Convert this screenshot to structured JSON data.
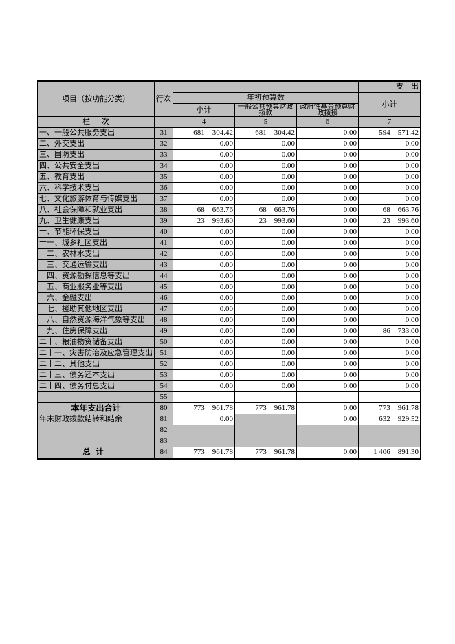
{
  "headers": {
    "title_left": "项目（按功能分类）",
    "row_no": "行次",
    "exp": "支",
    "out": "出",
    "ycn": "年初预算数",
    "xj": "小计",
    "ybgg": "一般公共预算财政拨款",
    "zfjj": "政府性基金预算财政拨接",
    "lan": "栏",
    "ci": "次",
    "c4": "4",
    "c5": "5",
    "c6": "6",
    "c7": "7"
  },
  "rows": [
    {
      "label": "一、一般公共服务支出",
      "no": "31",
      "v": [
        "681　304.42",
        "681　304.42",
        "0.00",
        "594　571.42"
      ]
    },
    {
      "label": "二、外交支出",
      "no": "32",
      "v": [
        "0.00",
        "0.00",
        "0.00",
        "0.00"
      ]
    },
    {
      "label": "三、国防支出",
      "no": "33",
      "v": [
        "0.00",
        "0.00",
        "0.00",
        "0.00"
      ]
    },
    {
      "label": "四、公共安全支出",
      "no": "34",
      "v": [
        "0.00",
        "0.00",
        "0.00",
        "0.00"
      ]
    },
    {
      "label": "五、教育支出",
      "no": "35",
      "v": [
        "0.00",
        "0.00",
        "0.00",
        "0.00"
      ]
    },
    {
      "label": "六、科学技术支出",
      "no": "36",
      "v": [
        "0.00",
        "0.00",
        "0.00",
        "0.00"
      ]
    },
    {
      "label": "七、文化旅游体育与传媒支出",
      "no": "37",
      "v": [
        "0.00",
        "0.00",
        "0.00",
        "0.00"
      ]
    },
    {
      "label": "八、社会保障和就业支出",
      "no": "38",
      "v": [
        "68　663.76",
        "68　663.76",
        "0.00",
        "68　663.76"
      ]
    },
    {
      "label": "九、卫生健康支出",
      "no": "39",
      "v": [
        "23　993.60",
        "23　993.60",
        "0.00",
        "23　993.60"
      ]
    },
    {
      "label": "十、节能环保支出",
      "no": "40",
      "v": [
        "0.00",
        "0.00",
        "0.00",
        "0.00"
      ]
    },
    {
      "label": "十一、城乡社区支出",
      "no": "41",
      "v": [
        "0.00",
        "0.00",
        "0.00",
        "0.00"
      ]
    },
    {
      "label": "十二、农林水支出",
      "no": "42",
      "v": [
        "0.00",
        "0.00",
        "0.00",
        "0.00"
      ]
    },
    {
      "label": "十三、交通运输支出",
      "no": "43",
      "v": [
        "0.00",
        "0.00",
        "0.00",
        "0.00"
      ]
    },
    {
      "label": "十四、资源勘探信息等支出",
      "no": "44",
      "v": [
        "0.00",
        "0.00",
        "0.00",
        "0.00"
      ]
    },
    {
      "label": "十五、商业服务业等支出",
      "no": "45",
      "v": [
        "0.00",
        "0.00",
        "0.00",
        "0.00"
      ]
    },
    {
      "label": "十六、金融支出",
      "no": "46",
      "v": [
        "0.00",
        "0.00",
        "0.00",
        "0.00"
      ]
    },
    {
      "label": "十七、援助其他地区支出",
      "no": "47",
      "v": [
        "0.00",
        "0.00",
        "0.00",
        "0.00"
      ]
    },
    {
      "label": "十八、自然资源海洋气象等支出",
      "no": "48",
      "v": [
        "0.00",
        "0.00",
        "0.00",
        "0.00"
      ]
    },
    {
      "label": "十九、住房保障支出",
      "no": "49",
      "v": [
        "0.00",
        "0.00",
        "0.00",
        "86　733.00"
      ]
    },
    {
      "label": "二十、粮油物资储备支出",
      "no": "50",
      "v": [
        "0.00",
        "0.00",
        "0.00",
        "0.00"
      ]
    },
    {
      "label": "二十一、灾害防治及应急管理支出",
      "no": "51",
      "v": [
        "0.00",
        "0.00",
        "0.00",
        "0.00"
      ]
    },
    {
      "label": "二十二、其他支出",
      "no": "52",
      "v": [
        "0.00",
        "0.00",
        "0.00",
        "0.00"
      ]
    },
    {
      "label": "二十三、债务还本支出",
      "no": "53",
      "v": [
        "0.00",
        "0.00",
        "0.00",
        "0.00"
      ]
    },
    {
      "label": "二十四、债务付息支出",
      "no": "54",
      "v": [
        "0.00",
        "0.00",
        "0.00",
        "0.00"
      ]
    }
  ],
  "blank_row_no": "55",
  "totals": {
    "year_total_label": "本年支出合计",
    "year_total_no": "80",
    "year_total_v": [
      "773　961.78",
      "773　961.78",
      "0.00",
      "773　961.78"
    ],
    "carry_label": "年末财政拨款结转和结余",
    "carry_no": "81",
    "carry_v": [
      "0.00",
      "",
      "0.00",
      "632　929.52"
    ],
    "r82": "82",
    "r83": "83",
    "grand_label": "总计",
    "grand_no": "84",
    "grand_v": [
      "773　961.78",
      "773　961.78",
      "0.00",
      "1 406　891.30"
    ]
  }
}
